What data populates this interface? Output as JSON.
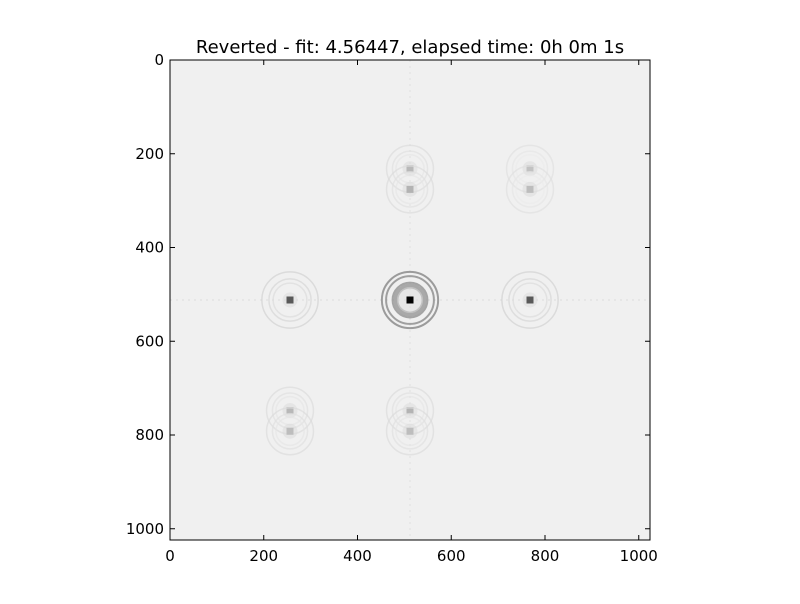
{
  "chart_data": {
    "type": "heatmap",
    "title": "Reverted - fit: 4.56447, elapsed time: 0h 0m 1s",
    "xlim": [
      0,
      1024
    ],
    "ylim": [
      1024,
      0
    ],
    "x_ticks": [
      0,
      200,
      400,
      600,
      800,
      1000
    ],
    "y_ticks": [
      0,
      200,
      400,
      600,
      800,
      1000
    ],
    "x_tick_labels": [
      "0",
      "200",
      "400",
      "600",
      "800",
      "1000"
    ],
    "y_tick_labels": [
      "0",
      "200",
      "400",
      "600",
      "800",
      "1000"
    ],
    "y_axis_inverted": true,
    "colormap": "gray",
    "background_value": 0.94,
    "features": [
      {
        "name": "center",
        "x": 512,
        "y": 512,
        "peak": 0.0,
        "ring": 0.55
      },
      {
        "name": "left",
        "x": 256,
        "y": 512,
        "peak": 0.35,
        "ring": 0.82
      },
      {
        "name": "right",
        "x": 768,
        "y": 512,
        "peak": 0.35,
        "ring": 0.82
      },
      {
        "name": "top-mid-a",
        "x": 512,
        "y": 232,
        "peak": 0.72,
        "ring": 0.86
      },
      {
        "name": "top-mid-b",
        "x": 512,
        "y": 276,
        "peak": 0.7,
        "ring": 0.86
      },
      {
        "name": "top-right-a",
        "x": 768,
        "y": 232,
        "peak": 0.76,
        "ring": 0.88
      },
      {
        "name": "top-right-b",
        "x": 768,
        "y": 276,
        "peak": 0.74,
        "ring": 0.88
      },
      {
        "name": "bottom-left-a",
        "x": 256,
        "y": 748,
        "peak": 0.72,
        "ring": 0.86
      },
      {
        "name": "bottom-left-b",
        "x": 256,
        "y": 792,
        "peak": 0.74,
        "ring": 0.86
      },
      {
        "name": "bottom-mid-a",
        "x": 512,
        "y": 748,
        "peak": 0.7,
        "ring": 0.86
      },
      {
        "name": "bottom-mid-b",
        "x": 512,
        "y": 792,
        "peak": 0.74,
        "ring": 0.86
      }
    ],
    "grid": false
  }
}
